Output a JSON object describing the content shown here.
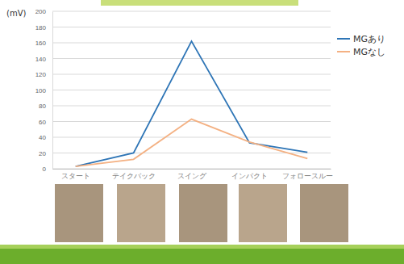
{
  "chart_data": {
    "type": "line",
    "y_label": "(mV)",
    "categories": [
      "スタート",
      "テイクバック",
      "スイング",
      "インパクト",
      "フォロースルー"
    ],
    "series": [
      {
        "name": "MGあり",
        "color": "#2e75b6",
        "values": [
          3,
          20,
          162,
          33,
          21
        ]
      },
      {
        "name": "MGなし",
        "color": "#f4b183",
        "values": [
          3,
          12,
          63,
          34,
          13
        ]
      }
    ],
    "ylim": [
      0,
      200
    ],
    "yticks": [
      0,
      20,
      40,
      60,
      80,
      100,
      120,
      140,
      160,
      180,
      200
    ],
    "grid": true,
    "legend": "right"
  }
}
